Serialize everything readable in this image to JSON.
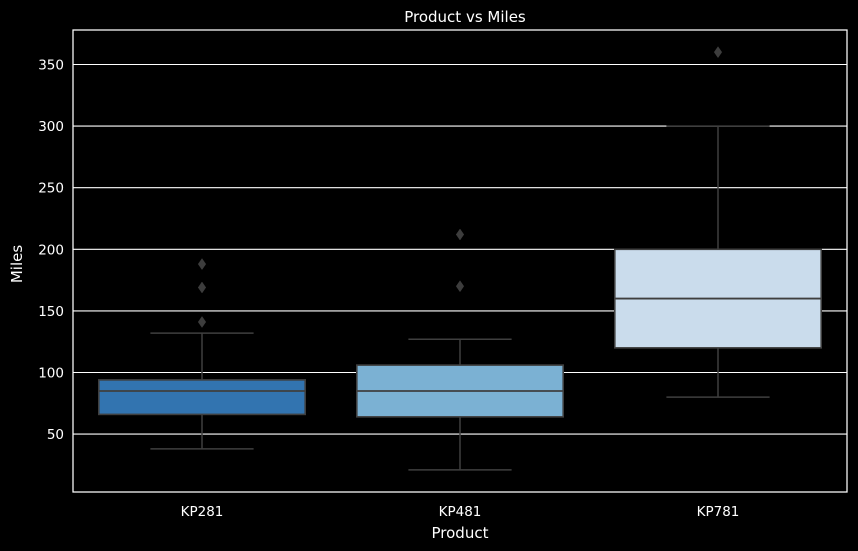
{
  "chart_data": {
    "type": "box",
    "title": "Product vs Miles",
    "xlabel": "Product",
    "ylabel": "Miles",
    "categories": [
      "KP281",
      "KP481",
      "KP781"
    ],
    "yticks": [
      50,
      100,
      150,
      200,
      250,
      300,
      350
    ],
    "ylim": [
      3,
      378
    ],
    "grid": true,
    "boxes": [
      {
        "category": "KP281",
        "whisker_low": 38,
        "q1": 66,
        "median": 85,
        "q3": 94,
        "whisker_high": 132,
        "outliers": [
          141,
          169,
          188
        ],
        "color": "#3274b0"
      },
      {
        "category": "KP481",
        "whisker_low": 21,
        "q1": 64,
        "median": 85,
        "q3": 106,
        "whisker_high": 127,
        "outliers": [
          170,
          212
        ],
        "color": "#7bb1d3"
      },
      {
        "category": "KP781",
        "whisker_low": 80,
        "q1": 120,
        "median": 160,
        "q3": 200,
        "whisker_high": 300,
        "outliers": [
          360
        ],
        "color": "#cadcec"
      }
    ],
    "colors": {
      "background": "#000000",
      "grid": "#ffffff",
      "box_edge": "#3f3f3f",
      "text": "#ffffff"
    }
  }
}
